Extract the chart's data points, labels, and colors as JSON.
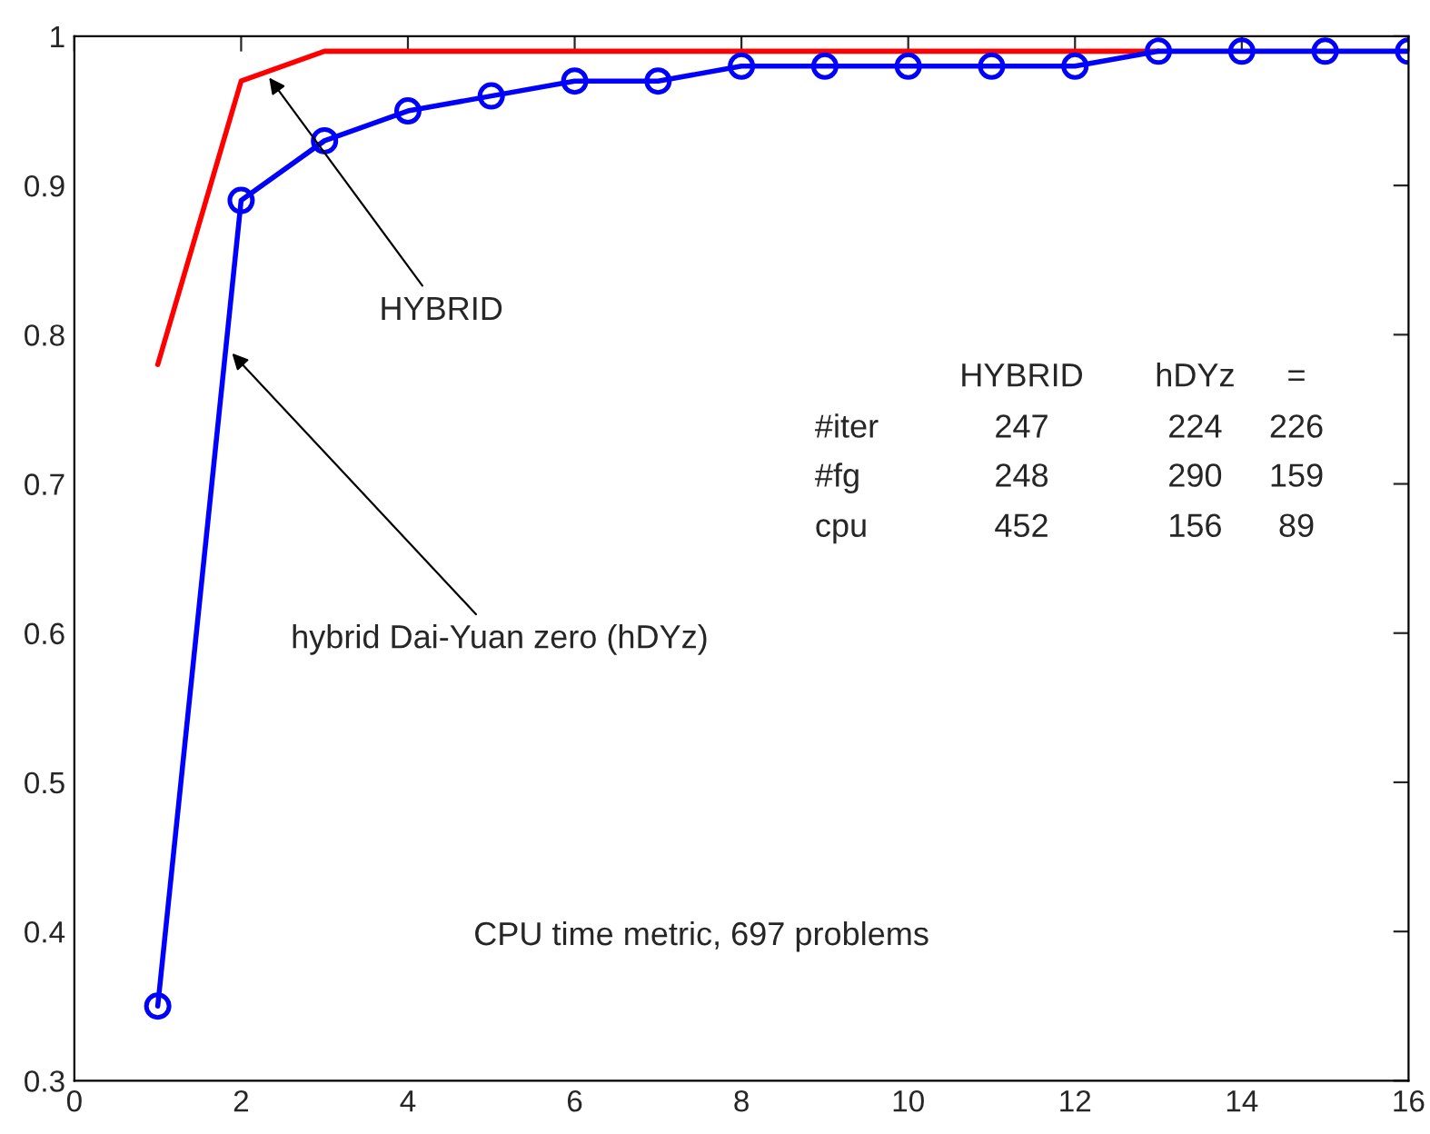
{
  "chart_data": {
    "type": "line",
    "x": [
      1,
      2,
      3,
      4,
      5,
      6,
      7,
      8,
      9,
      10,
      11,
      12,
      13,
      14,
      15,
      16
    ],
    "series": [
      {
        "color": "#ff0000",
        "marker": "none",
        "values": [
          0.78,
          0.97,
          0.99,
          0.99,
          0.99,
          0.99,
          0.99,
          0.99,
          0.99,
          0.99,
          0.99,
          0.99,
          0.99,
          null,
          null,
          null
        ]
      },
      {
        "color": "#0000ff",
        "marker": "circle",
        "values": [
          0.35,
          0.89,
          0.93,
          0.95,
          0.96,
          0.97,
          0.97,
          0.98,
          0.98,
          0.98,
          0.98,
          0.98,
          0.99,
          0.99,
          0.99,
          0.99
        ]
      }
    ],
    "xlim": [
      0,
      16
    ],
    "ylim": [
      0.3,
      1
    ],
    "xticks": [
      0,
      2,
      4,
      6,
      8,
      10,
      12,
      14,
      16
    ],
    "yticks": [
      0.3,
      0.4,
      0.5,
      0.6,
      0.7,
      0.8,
      0.9,
      1
    ],
    "grid": false,
    "legend": false,
    "line_style": "solid",
    "annotations": [
      {
        "text": "HYBRID",
        "x": 2.3,
        "y": 0.975
      },
      {
        "text": "hybrid Dai-Yuan zero (hDYz)",
        "x": 1.85,
        "y": 0.79
      },
      "CPU time metric, 697 problems",
      "HYBRID",
      "hDYz",
      "=",
      "#iter",
      "247",
      "224",
      "226",
      "#fg",
      "248",
      "290",
      "159",
      "cpu",
      "452",
      "156",
      "89"
    ]
  }
}
